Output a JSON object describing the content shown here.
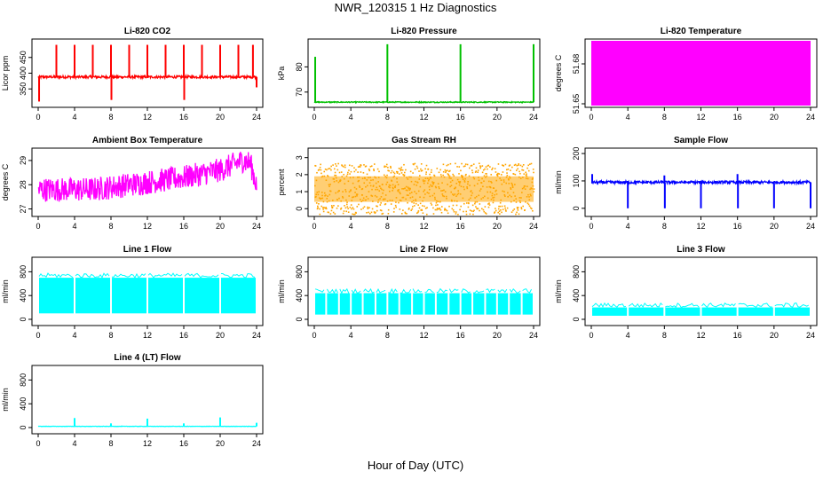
{
  "title": "NWR_120315  1 Hz Diagnostics",
  "xlabel": "Hour of Day (UTC)",
  "chart_data": [
    {
      "type": "line",
      "title": "Li-820 CO2",
      "ylabel": "Licor ppm",
      "color": "#ff0000",
      "xlim": [
        0,
        24
      ],
      "ylim": [
        300,
        500
      ],
      "yticks": [
        350,
        400,
        450
      ],
      "xticks": [
        0,
        4,
        8,
        12,
        16,
        20,
        24
      ],
      "baseline": [
        [
          0,
          388
        ],
        [
          24,
          388
        ]
      ],
      "noise": 4,
      "spikes": [
        [
          0.1,
          310
        ],
        [
          2,
          490
        ],
        [
          4,
          490
        ],
        [
          6,
          490
        ],
        [
          8,
          490
        ],
        [
          8.05,
          315
        ],
        [
          10,
          490
        ],
        [
          12,
          490
        ],
        [
          14,
          490
        ],
        [
          16,
          490
        ],
        [
          16.05,
          315
        ],
        [
          18,
          490
        ],
        [
          20,
          490
        ],
        [
          22,
          490
        ],
        [
          23.6,
          490
        ],
        [
          24,
          355
        ]
      ]
    },
    {
      "type": "line",
      "title": "Li-820 Pressure",
      "ylabel": "kPa",
      "color": "#00c000",
      "xlim": [
        0,
        24
      ],
      "ylim": [
        65,
        90
      ],
      "yticks": [
        70,
        80
      ],
      "xticks": [
        0,
        4,
        8,
        12,
        16,
        20,
        24
      ],
      "baseline": [
        [
          0,
          66
        ],
        [
          24,
          66
        ]
      ],
      "noise": 0.2,
      "spikes": [
        [
          0.1,
          84
        ],
        [
          8,
          89
        ],
        [
          16,
          89
        ],
        [
          24,
          89
        ]
      ]
    },
    {
      "type": "area",
      "title": "Li-820 Temperature",
      "ylabel": "degrees C",
      "color": "#ff00ff",
      "xlim": [
        0,
        24
      ],
      "yticks": [
        51.65,
        51.68
      ],
      "xticks": [
        0,
        4,
        8,
        12,
        16,
        20,
        24
      ]
    },
    {
      "type": "line",
      "title": "Ambient Box Temperature",
      "ylabel": "degrees C",
      "color": "#ff00ff",
      "xlim": [
        0,
        24
      ],
      "ylim": [
        26.8,
        29.4
      ],
      "yticks": [
        27.0,
        28.0,
        29.0
      ],
      "xticks": [
        0,
        4,
        8,
        12,
        16,
        20,
        24
      ],
      "baseline": [
        [
          0,
          27.8
        ],
        [
          6,
          27.8
        ],
        [
          10,
          28.0
        ],
        [
          16,
          28.3
        ],
        [
          20,
          28.6
        ],
        [
          22.5,
          29.0
        ],
        [
          23.3,
          28.9
        ],
        [
          24,
          28.0
        ]
      ],
      "noise": 0.5,
      "spikes": []
    },
    {
      "type": "scatter",
      "title": "Gas Stream RH",
      "ylabel": "percent",
      "color": "#ffa500",
      "xlim": [
        0,
        24
      ],
      "ylim": [
        -0.3,
        3.4
      ],
      "yticks": [
        0,
        1,
        2,
        3
      ],
      "xticks": [
        0,
        4,
        8,
        12,
        16,
        20,
        24
      ],
      "baseline": [
        [
          0,
          1.2
        ],
        [
          24,
          1.2
        ]
      ],
      "noise": 1.5,
      "spikes": []
    },
    {
      "type": "line",
      "title": "Sample Flow",
      "ylabel": "ml/min",
      "color": "#0000ff",
      "xlim": [
        0,
        24
      ],
      "ylim": [
        -20,
        210
      ],
      "yticks": [
        0,
        100,
        200
      ],
      "xticks": [
        0,
        4,
        8,
        12,
        16,
        20,
        24
      ],
      "baseline": [
        [
          0,
          95
        ],
        [
          24,
          95
        ]
      ],
      "noise": 5,
      "spikes": [
        [
          0.1,
          125
        ],
        [
          4,
          0
        ],
        [
          8,
          120
        ],
        [
          8.05,
          0
        ],
        [
          12,
          0
        ],
        [
          16,
          125
        ],
        [
          16.05,
          0
        ],
        [
          20,
          0
        ],
        [
          24,
          0
        ]
      ]
    },
    {
      "type": "area",
      "title": "Line 1 Flow",
      "ylabel": "ml/min",
      "color": "#00ffff",
      "xlim": [
        0,
        24
      ],
      "ylim": [
        -60,
        1000
      ],
      "yticks": [
        0,
        400,
        800
      ],
      "xticks": [
        0,
        4,
        8,
        12,
        16,
        20,
        24
      ],
      "band": [
        100,
        700
      ],
      "gaps": [
        4,
        8,
        12,
        16,
        20
      ]
    },
    {
      "type": "area",
      "title": "Line 2 Flow",
      "ylabel": "ml/min",
      "color": "#00ffff",
      "xlim": [
        0,
        24
      ],
      "ylim": [
        -60,
        1000
      ],
      "yticks": [
        0,
        400,
        800
      ],
      "xticks": [
        0,
        4,
        8,
        12,
        16,
        20,
        24
      ],
      "band": [
        80,
        440
      ],
      "gaps": [
        1.3,
        2.7,
        4,
        5.3,
        6.7,
        8,
        9.3,
        10.7,
        12,
        13.3,
        14.7,
        16,
        17.3,
        18.7,
        20,
        21.3,
        22.7
      ]
    },
    {
      "type": "area",
      "title": "Line 3 Flow",
      "ylabel": "ml/min",
      "color": "#00ffff",
      "xlim": [
        0,
        24
      ],
      "ylim": [
        -60,
        1000
      ],
      "yticks": [
        0,
        400,
        800
      ],
      "xticks": [
        0,
        4,
        8,
        12,
        16,
        20,
        24
      ],
      "band": [
        60,
        200
      ],
      "gaps": [
        4,
        8,
        12,
        16,
        20
      ]
    },
    {
      "type": "line",
      "title": "Line 4 (LT) Flow",
      "ylabel": "ml/min",
      "color": "#00ffff",
      "xlim": [
        0,
        24
      ],
      "ylim": [
        -60,
        1000
      ],
      "yticks": [
        0,
        400,
        800
      ],
      "xticks": [
        0,
        4,
        8,
        12,
        16,
        20,
        24
      ],
      "baseline": [
        [
          0,
          20
        ],
        [
          24,
          20
        ]
      ],
      "noise": 3,
      "spikes": [
        [
          4,
          160
        ],
        [
          8,
          70
        ],
        [
          12,
          150
        ],
        [
          16,
          70
        ],
        [
          20,
          170
        ],
        [
          24,
          80
        ]
      ]
    }
  ]
}
